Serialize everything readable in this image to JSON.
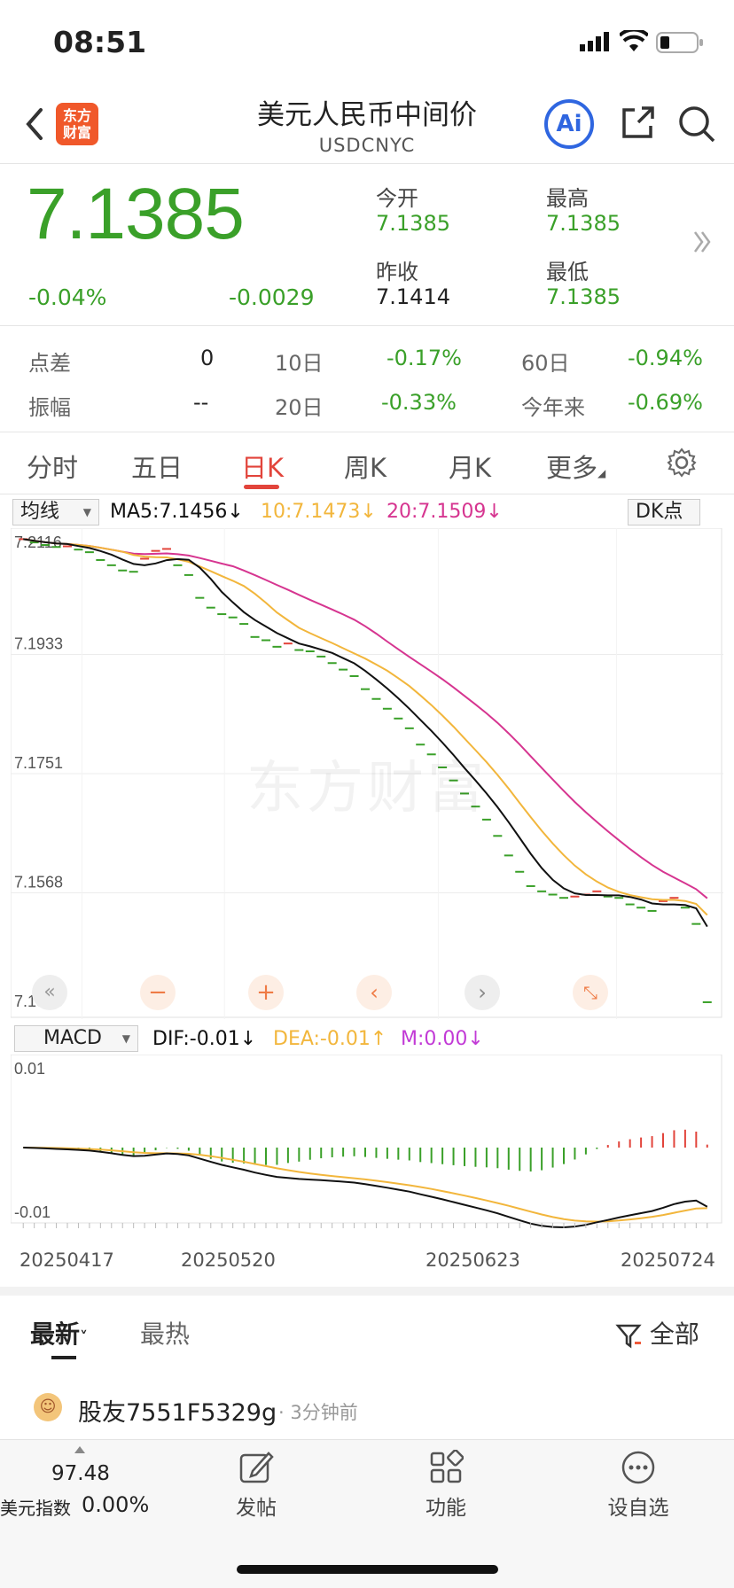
{
  "status_bar": {
    "time": "08:51"
  },
  "nav": {
    "title": "美元人民币中间价",
    "subtitle": "USDCNYC",
    "logo_text_1": "东方",
    "logo_text_2": "财富",
    "ai_label": "Ai"
  },
  "quote": {
    "price": "7.1385",
    "change_pct": "-0.04%",
    "change": "-0.0029",
    "open_label": "今开",
    "open": "7.1385",
    "high_label": "最高",
    "high": "7.1385",
    "prev_close_label": "昨收",
    "prev_close": "7.1414",
    "low_label": "最低",
    "low": "7.1385"
  },
  "stats": {
    "spread_label": "点差",
    "spread": "0",
    "d10_label": "10日",
    "d10": "-0.17%",
    "d60_label": "60日",
    "d60": "-0.94%",
    "amp_label": "振幅",
    "amp": "--",
    "d20_label": "20日",
    "d20": "-0.33%",
    "ytd_label": "今年来",
    "ytd": "-0.69%"
  },
  "tabs": [
    "分时",
    "五日",
    "日K",
    "周K",
    "月K",
    "更多"
  ],
  "ma_bar": {
    "selector": "均线",
    "ma5": "MA5:7.1456",
    "ma10": "10:7.1473",
    "ma20": "20:7.1509",
    "dk": "DK点",
    "arrow_down": "↓"
  },
  "macd_bar": {
    "selector": "MACD",
    "dif": "DIF:-0.01",
    "dea": "DEA:-0.01",
    "m": "M:0.00",
    "arrow_down": "↓",
    "arrow_up": "↑"
  },
  "chart_data": {
    "type": "candlestick",
    "y_ticks": [
      "7.2116",
      "7.1933",
      "7.1751",
      "7.1568",
      "7.1385"
    ],
    "ylim": [
      7.1385,
      7.2116
    ],
    "x_ticks": [
      "20250417",
      "20250520",
      "20250623",
      "20250724"
    ],
    "watermark": "东方财富",
    "closes": [
      7.211,
      7.2105,
      7.2101,
      7.2098,
      7.2099,
      7.2094,
      7.209,
      7.2078,
      7.207,
      7.2062,
      7.206,
      7.208,
      7.2092,
      7.2095,
      7.207,
      7.2055,
      7.202,
      7.2005,
      7.1995,
      7.199,
      7.198,
      7.196,
      7.1955,
      7.1945,
      7.195,
      7.194,
      7.1938,
      7.193,
      7.192,
      7.191,
      7.19,
      7.188,
      7.1865,
      7.185,
      7.1835,
      7.182,
      7.1795,
      7.178,
      7.176,
      7.174,
      7.172,
      7.17,
      7.168,
      7.1655,
      7.1625,
      7.16,
      7.1578,
      7.157,
      7.1565,
      7.156,
      7.1562,
      7.1565,
      7.157,
      7.1562,
      7.156,
      7.155,
      7.1545,
      7.154,
      7.1555,
      7.156,
      7.1545,
      7.152,
      7.14
    ],
    "ma5_label": "MA5",
    "ma10_label": "MA10",
    "ma20_label": "MA20",
    "macd": {
      "ymax_label": "0.01",
      "ymin_label": "-0.01"
    }
  },
  "feed": {
    "tab_latest": "最新",
    "tab_hot": "最热",
    "filter": "全部",
    "post_user": "股友7551F5329g",
    "post_time": "· 3分钟前"
  },
  "bottom": {
    "index_value": "97.48",
    "index_name": "美元指数",
    "index_change": "0.00%",
    "post": "发帖",
    "functions": "功能",
    "watchlist": "设自选"
  },
  "colors": {
    "up": "#e2443b",
    "down": "#3aa029",
    "ma5": "#111111",
    "ma10": "#f2b63c",
    "ma20": "#d63590"
  }
}
